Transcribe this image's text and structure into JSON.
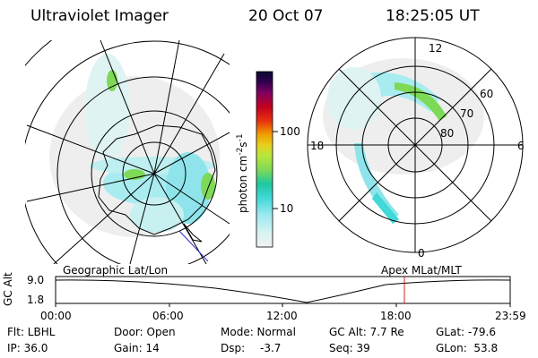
{
  "header": {
    "title": "Ultraviolet Imager",
    "date": "20 Oct 07",
    "time": "18:25:05 UT"
  },
  "colorbar": {
    "unit_label": "photon cm",
    "unit_exp1": "-2",
    "unit_mid": "s",
    "unit_exp2": "-1",
    "ticks": [
      "100",
      "10"
    ],
    "colors": [
      "#f2f2f2",
      "#d9f2f2",
      "#9ee9f0",
      "#40d8d8",
      "#1fc8a0",
      "#7ed957",
      "#b8e63c",
      "#e8d020",
      "#f0a000",
      "#e83010",
      "#c00020",
      "#800060",
      "#300050",
      "#0a0a30"
    ]
  },
  "left_map": {
    "caption": "Geographic Lat/Lon"
  },
  "right_map": {
    "caption": "Apex MLat/MLT",
    "mlt_labels": {
      "top": "12",
      "right": "6",
      "bottom": "0",
      "left": "18"
    },
    "lat_labels": [
      "60",
      "70",
      "80"
    ]
  },
  "timeline": {
    "ylabel": "GC Alt",
    "ytick_top": "9.0",
    "ytick_bottom": "1.8",
    "xticks": [
      "00:00",
      "06:00",
      "12:00",
      "18:00",
      "23:59"
    ],
    "current_marker_time": "18:25",
    "marker_color": "#d02020"
  },
  "status": {
    "flt": "Flt: LBHL",
    "ip": "IP: 36.0",
    "door": "Door: Open",
    "gain": "Gain: 14",
    "mode": "Mode: Normal",
    "dsp": "Dsp:",
    "dsp_val": "-3.7",
    "gc_alt": "GC Alt: 7.7 Re",
    "seq": "Seq: 39",
    "glat": "GLat: -79.6",
    "glon": "GLon:  53.8"
  }
}
